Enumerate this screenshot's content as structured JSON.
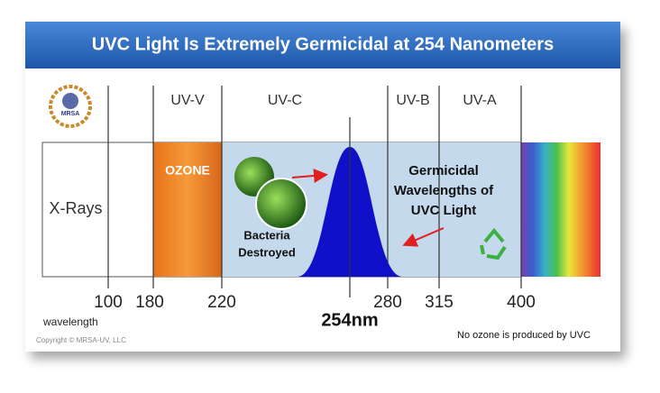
{
  "header": {
    "title": "UVC Light Is Extremely Germicidal at 254 Nanometers"
  },
  "logo": {
    "label": "MRSA"
  },
  "bands": {
    "top": [
      "UV-V",
      "UV-C",
      "UV-B",
      "UV-A"
    ],
    "xrays": "X-Rays",
    "ozone": "OZONE"
  },
  "bacteria": {
    "lines": [
      "Bacteria",
      "Destroyed"
    ]
  },
  "germicidal": {
    "lines": [
      "Germicidal",
      "Wavelengths of",
      "UVC Light"
    ]
  },
  "scale": {
    "ticks": [
      100,
      180,
      220,
      280,
      315,
      400
    ],
    "peak": "254nm",
    "label": "wavelength"
  },
  "footer": {
    "copyright": "Copyright © MRSA-UV, LLC",
    "note": "No ozone is produced by UVC"
  }
}
